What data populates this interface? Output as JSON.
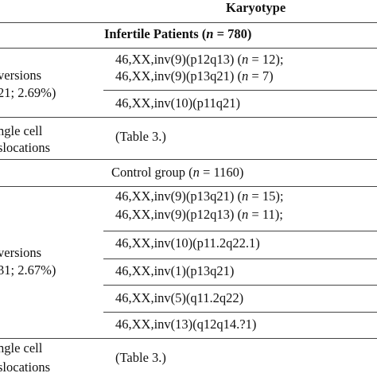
{
  "header": {
    "title": "Karyotype"
  },
  "sections": [
    {
      "title": [
        "Infertile Patients (",
        "n",
        " = 780)"
      ],
      "rows": [
        {
          "label": [
            "versions",
            "21; 2.69%)"
          ],
          "cells": [
            [
              [
                "46,XX,inv(9)(p12q13) (",
                "n",
                " = 12);"
              ],
              [
                "46,XX,inv(9)(p13q21) (",
                "n",
                " = 7)"
              ]
            ],
            [
              [
                "46,XX,inv(10)(p11q21)"
              ]
            ]
          ]
        },
        {
          "label": [
            "ngle cell",
            "slocations"
          ],
          "cells": [
            [
              [
                "(Table 3.)"
              ]
            ]
          ]
        }
      ]
    },
    {
      "title": [
        "Control group (",
        "n",
        " = 1160)"
      ],
      "rows": [
        {
          "label": [
            "versions",
            "31; 2.67%)"
          ],
          "cells": [
            [
              [
                "46,XX,inv(9)(p13q21) (",
                "n",
                " = 15);"
              ],
              [
                "46,XX,inv(9)(p12q13) (",
                "n",
                " = 11);"
              ]
            ],
            [
              [
                "46,XX,inv(10)(p11.2q22.1)"
              ]
            ],
            [
              [
                "46,XX,inv(1)(p13q21)"
              ]
            ],
            [
              [
                "46,XX,inv(5)(q11.2q22)"
              ]
            ],
            [
              [
                "46,XX,inv(13)(q12q14.?1)"
              ]
            ]
          ]
        },
        {
          "label": [
            "ngle cell",
            "slocations"
          ],
          "cells": [
            [
              [
                "(Table 3.)"
              ]
            ]
          ]
        }
      ]
    }
  ]
}
